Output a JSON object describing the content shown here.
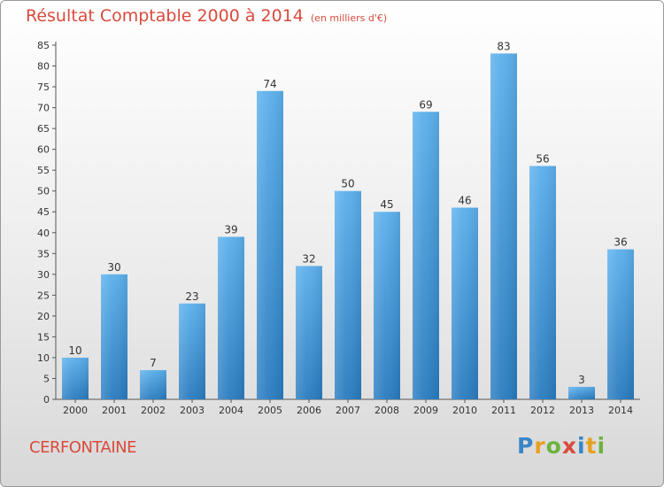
{
  "header": {
    "title": "Résultat Comptable 2000 à 2014",
    "unit": "(en milliers d'€)"
  },
  "footer": {
    "town": "CERFONTAINE",
    "logo_letters": [
      {
        "ch": "P",
        "color": "#3a86c8"
      },
      {
        "ch": "r",
        "color": "#e8a020"
      },
      {
        "ch": "o",
        "color": "#6cb33e"
      },
      {
        "ch": "x",
        "color": "#d94a3c"
      },
      {
        "ch": "i",
        "color": "#3a86c8"
      },
      {
        "ch": "t",
        "color": "#e8a020"
      },
      {
        "ch": "i",
        "color": "#6cb33e"
      }
    ]
  },
  "colors": {
    "bar": "#4a9fe0",
    "title": "#d94a3c"
  },
  "chart_data": {
    "type": "bar",
    "title": "Résultat Comptable 2000 à 2014",
    "xlabel": "",
    "ylabel": "",
    "categories": [
      "2000",
      "2001",
      "2002",
      "2003",
      "2004",
      "2005",
      "2006",
      "2007",
      "2008",
      "2009",
      "2010",
      "2011",
      "2012",
      "2013",
      "2014"
    ],
    "values": [
      10,
      30,
      7,
      23,
      39,
      74,
      32,
      50,
      45,
      69,
      46,
      83,
      56,
      3,
      36
    ],
    "ylim": [
      0,
      85
    ],
    "yticks": [
      0,
      5,
      10,
      15,
      20,
      25,
      30,
      35,
      40,
      45,
      50,
      55,
      60,
      65,
      70,
      75,
      80,
      85
    ],
    "grid": false,
    "legend": "none"
  }
}
